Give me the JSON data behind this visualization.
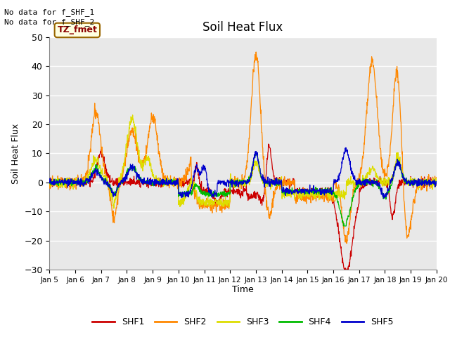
{
  "title": "Soil Heat Flux",
  "ylabel": "Soil Heat Flux",
  "xlabel": "Time",
  "ylim": [
    -30,
    50
  ],
  "no_data_text": [
    "No data for f_SHF_1",
    "No data for f_SHF_2"
  ],
  "tz_label": "TZ_fmet",
  "colors": {
    "SHF1": "#cc0000",
    "SHF2": "#ff8800",
    "SHF3": "#dddd00",
    "SHF4": "#00bb00",
    "SHF5": "#0000cc"
  },
  "bg_color": "#e8e8e8",
  "x_tick_labels": [
    "Jan 5",
    "Jan 6",
    "Jan 7",
    "Jan 8",
    "Jan 9",
    "Jan 10",
    "Jan 11",
    "Jan 12",
    "Jan 13",
    "Jan 14",
    "Jan 15",
    "Jan 16",
    "Jan 17",
    "Jan 18",
    "Jan 19",
    "Jan 20"
  ],
  "yticks": [
    -30,
    -20,
    -10,
    0,
    10,
    20,
    30,
    40,
    50
  ],
  "figsize": [
    6.4,
    4.8
  ],
  "dpi": 100
}
